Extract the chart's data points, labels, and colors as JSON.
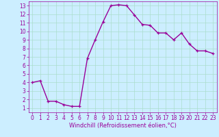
{
  "x": [
    0,
    1,
    2,
    3,
    4,
    5,
    6,
    7,
    8,
    9,
    10,
    11,
    12,
    13,
    14,
    15,
    16,
    17,
    18,
    19,
    20,
    21,
    22,
    23
  ],
  "y": [
    4.0,
    4.2,
    1.8,
    1.8,
    1.4,
    1.2,
    1.2,
    6.8,
    9.0,
    11.1,
    13.0,
    13.1,
    13.0,
    11.9,
    10.8,
    10.7,
    9.8,
    9.8,
    9.0,
    9.8,
    8.5,
    7.7,
    7.7,
    7.4
  ],
  "line_color": "#990099",
  "marker": "+",
  "marker_size": 3,
  "background_color": "#cceeff",
  "grid_color": "#aaddcc",
  "xlabel": "Windchill (Refroidissement éolien,°C)",
  "xlabel_fontsize": 6.0,
  "xlim": [
    -0.5,
    23.5
  ],
  "ylim": [
    0.5,
    13.5
  ],
  "xticks": [
    0,
    1,
    2,
    3,
    4,
    5,
    6,
    7,
    8,
    9,
    10,
    11,
    12,
    13,
    14,
    15,
    16,
    17,
    18,
    19,
    20,
    21,
    22,
    23
  ],
  "yticks": [
    1,
    2,
    3,
    4,
    5,
    6,
    7,
    8,
    9,
    10,
    11,
    12,
    13
  ],
  "tick_fontsize": 5.5,
  "line_width": 1.0
}
